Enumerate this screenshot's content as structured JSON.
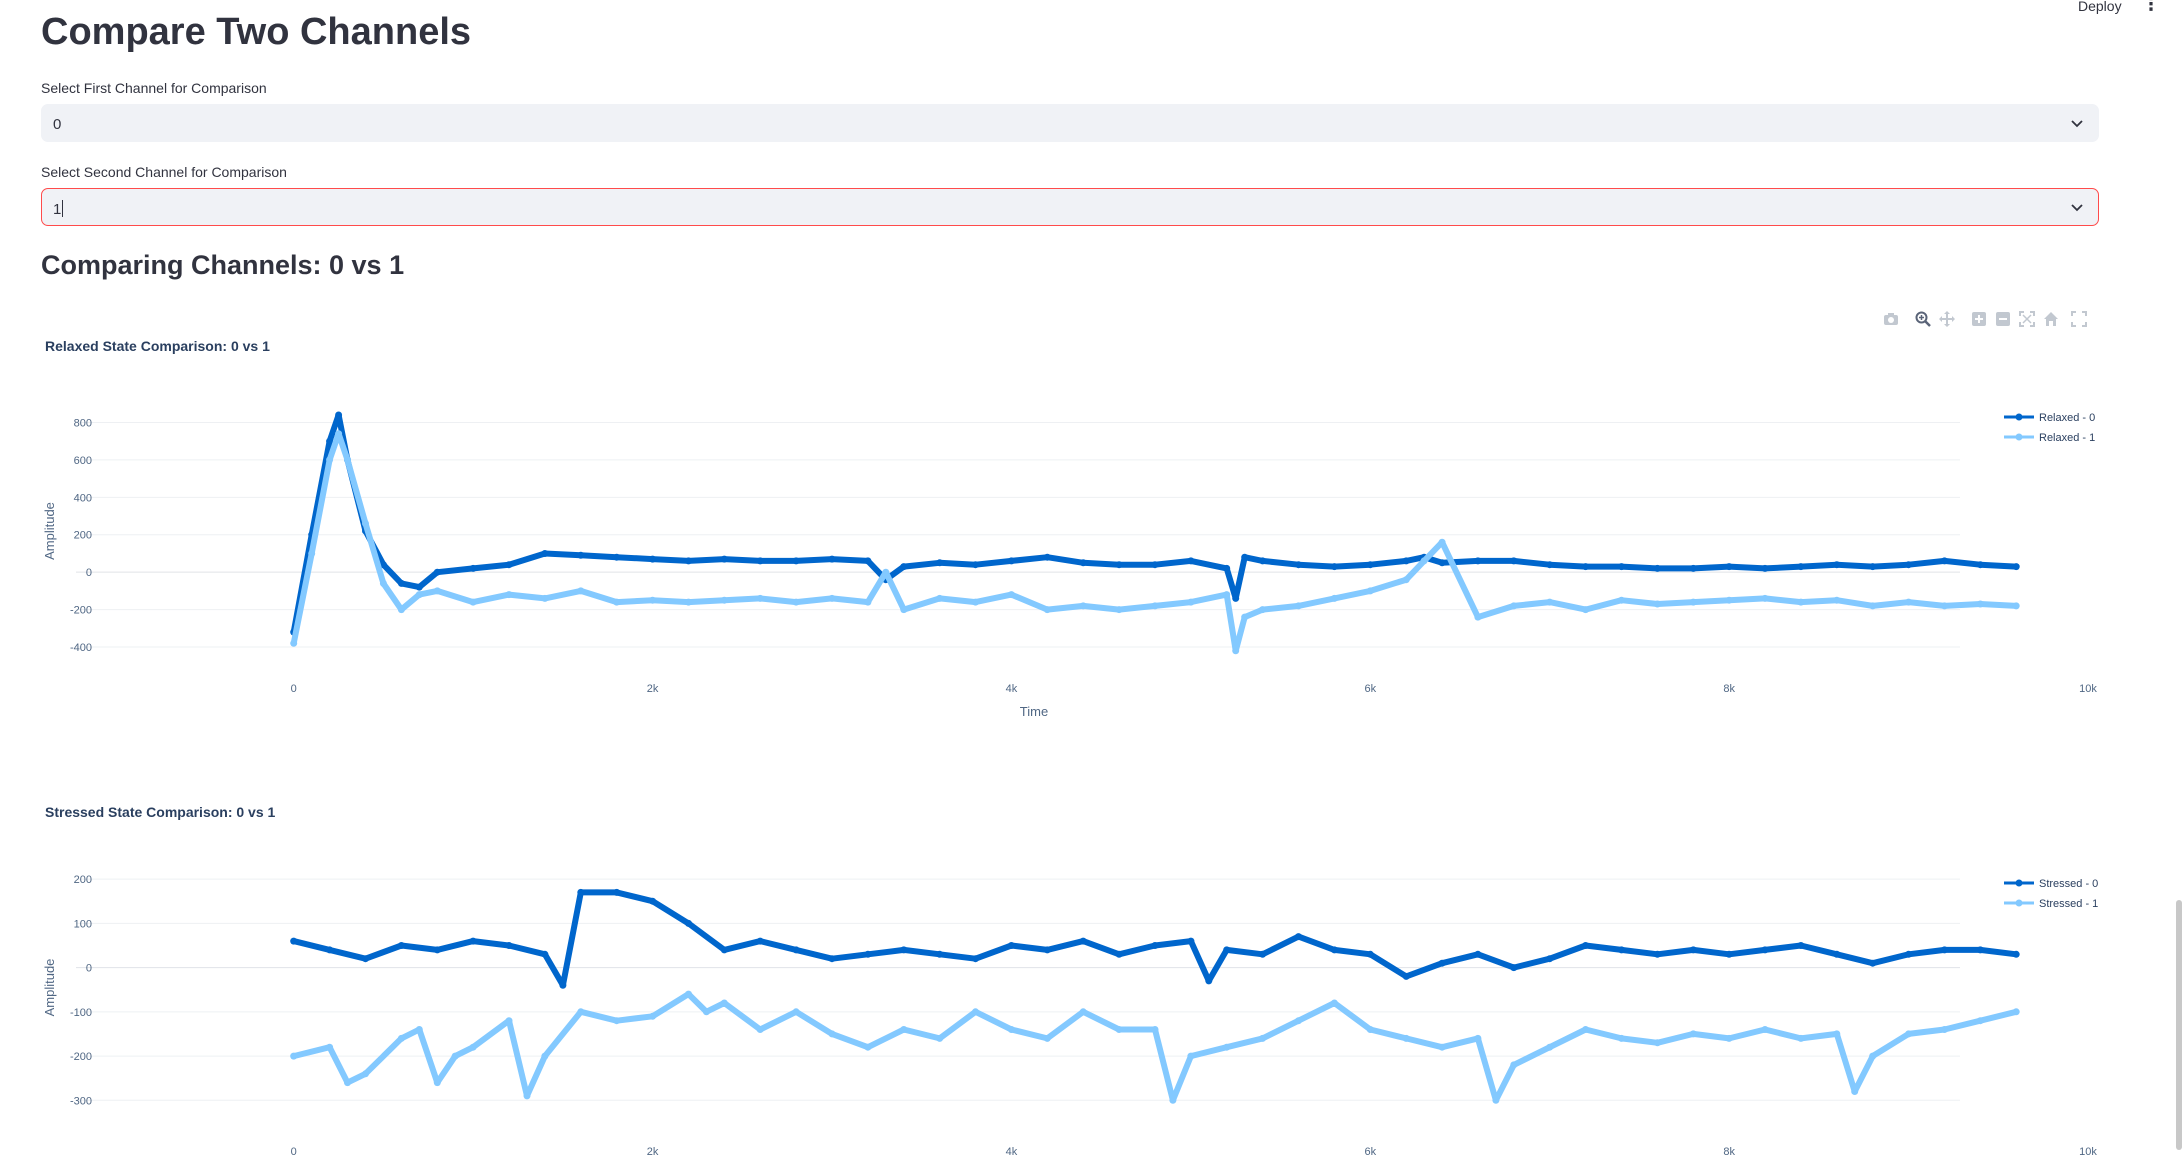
{
  "header": {
    "deploy_label": "Deploy",
    "menu_icon": "kebab-menu-icon"
  },
  "page_title": "Compare Two Channels",
  "first_select": {
    "label": "Select First Channel for Comparison",
    "value": "0"
  },
  "second_select": {
    "label": "Select Second Channel for Comparison",
    "value": "1"
  },
  "comparison_heading": "Comparing Channels: 0 vs 1",
  "modebar": [
    "camera-icon",
    "zoom-icon",
    "pan-icon",
    "zoom-in-icon",
    "zoom-out-icon",
    "autoscale-icon",
    "reset-axes-icon",
    "fullscreen-icon"
  ],
  "chart_data": [
    {
      "type": "line",
      "title": "Relaxed State Comparison: 0 vs 1",
      "xlabel": "Time",
      "ylabel": "Amplitude",
      "xlim": [
        -500,
        10000
      ],
      "ylim": [
        -480,
        920
      ],
      "x_ticks": [
        0,
        2000,
        4000,
        6000,
        8000,
        10000
      ],
      "x_tick_labels": [
        "0",
        "2k",
        "4k",
        "6k",
        "8k",
        "10k"
      ],
      "y_ticks": [
        -400,
        -200,
        0,
        200,
        400,
        600,
        800
      ],
      "legend_position": "top-right",
      "series": [
        {
          "name": "Relaxed - 0",
          "color": "#0066cc",
          "x": [
            0,
            100,
            200,
            250,
            300,
            400,
            500,
            600,
            700,
            800,
            1000,
            1200,
            1400,
            1600,
            1800,
            2000,
            2200,
            2400,
            2600,
            2800,
            3000,
            3200,
            3300,
            3400,
            3600,
            3800,
            4000,
            4200,
            4400,
            4600,
            4800,
            5000,
            5200,
            5250,
            5300,
            5400,
            5600,
            5800,
            6000,
            6200,
            6300,
            6400,
            6600,
            6800,
            7000,
            7200,
            7400,
            7600,
            7800,
            8000,
            8200,
            8400,
            8600,
            8800,
            9000,
            9200,
            9400,
            9600
          ],
          "y": [
            -320,
            200,
            700,
            840,
            600,
            220,
            40,
            -60,
            -80,
            0,
            20,
            40,
            100,
            90,
            80,
            70,
            60,
            70,
            60,
            60,
            70,
            60,
            -40,
            30,
            50,
            40,
            60,
            80,
            50,
            40,
            40,
            60,
            20,
            -140,
            80,
            60,
            40,
            30,
            40,
            60,
            80,
            50,
            60,
            60,
            40,
            30,
            30,
            20,
            20,
            30,
            20,
            30,
            40,
            30,
            40,
            60,
            40,
            30
          ]
        },
        {
          "name": "Relaxed - 1",
          "color": "#83c9ff",
          "x": [
            0,
            100,
            200,
            250,
            300,
            400,
            500,
            600,
            700,
            800,
            1000,
            1200,
            1400,
            1600,
            1800,
            2000,
            2200,
            2400,
            2600,
            2800,
            3000,
            3200,
            3300,
            3400,
            3600,
            3800,
            4000,
            4200,
            4400,
            4600,
            4800,
            5000,
            5200,
            5250,
            5300,
            5400,
            5600,
            5800,
            6000,
            6200,
            6300,
            6400,
            6600,
            6800,
            7000,
            7200,
            7400,
            7600,
            7800,
            8000,
            8200,
            8400,
            8600,
            8800,
            9000,
            9200,
            9400,
            9600
          ],
          "y": [
            -380,
            100,
            600,
            740,
            600,
            260,
            -60,
            -200,
            -120,
            -100,
            -160,
            -120,
            -140,
            -100,
            -160,
            -150,
            -160,
            -150,
            -140,
            -160,
            -140,
            -160,
            0,
            -200,
            -140,
            -160,
            -120,
            -200,
            -180,
            -200,
            -180,
            -160,
            -120,
            -420,
            -240,
            -200,
            -180,
            -140,
            -100,
            -40,
            60,
            160,
            -240,
            -180,
            -160,
            -200,
            -150,
            -170,
            -160,
            -150,
            -140,
            -160,
            -150,
            -180,
            -160,
            -180,
            -170,
            -180
          ]
        }
      ]
    },
    {
      "type": "line",
      "title": "Stressed State Comparison: 0 vs 1",
      "xlabel": "Time",
      "ylabel": "Amplitude",
      "xlim": [
        -500,
        10000
      ],
      "ylim": [
        -340,
        250
      ],
      "x_ticks": [
        0,
        2000,
        4000,
        6000,
        8000,
        10000
      ],
      "x_tick_labels": [
        "0",
        "2k",
        "4k",
        "6k",
        "8k",
        "10k"
      ],
      "y_ticks": [
        -300,
        -200,
        -100,
        0,
        100,
        200
      ],
      "legend_position": "top-right",
      "series": [
        {
          "name": "Stressed - 0",
          "color": "#0066cc",
          "x": [
            0,
            200,
            400,
            600,
            800,
            1000,
            1200,
            1400,
            1500,
            1600,
            1800,
            2000,
            2200,
            2400,
            2600,
            2800,
            3000,
            3200,
            3400,
            3600,
            3800,
            4000,
            4200,
            4400,
            4600,
            4800,
            5000,
            5100,
            5200,
            5400,
            5600,
            5800,
            6000,
            6200,
            6400,
            6600,
            6800,
            7000,
            7200,
            7400,
            7600,
            7800,
            8000,
            8200,
            8400,
            8600,
            8800,
            9000,
            9200,
            9400,
            9600
          ],
          "y": [
            60,
            40,
            20,
            50,
            40,
            60,
            50,
            30,
            -40,
            170,
            170,
            150,
            100,
            40,
            60,
            40,
            20,
            30,
            40,
            30,
            20,
            50,
            40,
            60,
            30,
            50,
            60,
            -30,
            40,
            30,
            70,
            40,
            30,
            -20,
            10,
            30,
            0,
            20,
            50,
            40,
            30,
            40,
            30,
            40,
            50,
            30,
            10,
            30,
            40,
            40,
            30
          ]
        },
        {
          "name": "Stressed - 1",
          "color": "#83c9ff",
          "x": [
            0,
            200,
            300,
            400,
            600,
            700,
            800,
            900,
            1000,
            1200,
            1300,
            1400,
            1600,
            1800,
            2000,
            2200,
            2300,
            2400,
            2600,
            2800,
            3000,
            3200,
            3400,
            3600,
            3800,
            4000,
            4200,
            4400,
            4600,
            4800,
            4900,
            5000,
            5200,
            5400,
            5600,
            5800,
            6000,
            6200,
            6400,
            6600,
            6700,
            6800,
            7000,
            7200,
            7400,
            7600,
            7800,
            8000,
            8200,
            8400,
            8600,
            8700,
            8800,
            9000,
            9200,
            9400,
            9600
          ],
          "y": [
            -200,
            -180,
            -260,
            -240,
            -160,
            -140,
            -260,
            -200,
            -180,
            -120,
            -290,
            -200,
            -100,
            -120,
            -110,
            -60,
            -100,
            -80,
            -140,
            -100,
            -150,
            -180,
            -140,
            -160,
            -100,
            -140,
            -160,
            -100,
            -140,
            -140,
            -300,
            -200,
            -180,
            -160,
            -120,
            -80,
            -140,
            -160,
            -180,
            -160,
            -300,
            -220,
            -180,
            -140,
            -160,
            -170,
            -150,
            -160,
            -140,
            -160,
            -150,
            -280,
            -200,
            -150,
            -140,
            -120,
            -100
          ]
        }
      ]
    }
  ]
}
